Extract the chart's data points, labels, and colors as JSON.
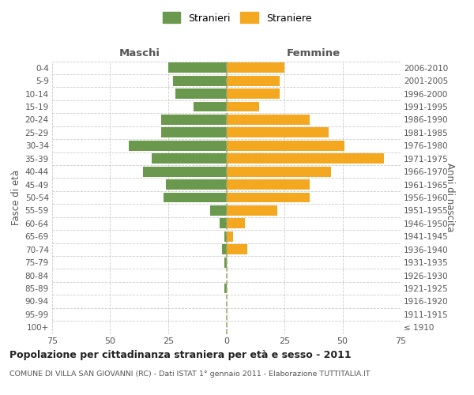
{
  "age_groups": [
    "100+",
    "95-99",
    "90-94",
    "85-89",
    "80-84",
    "75-79",
    "70-74",
    "65-69",
    "60-64",
    "55-59",
    "50-54",
    "45-49",
    "40-44",
    "35-39",
    "30-34",
    "25-29",
    "20-24",
    "15-19",
    "10-14",
    "5-9",
    "0-4"
  ],
  "birth_years": [
    "≤ 1910",
    "1911-1915",
    "1916-1920",
    "1921-1925",
    "1926-1930",
    "1931-1935",
    "1936-1940",
    "1941-1945",
    "1946-1950",
    "1951-1955",
    "1956-1960",
    "1961-1965",
    "1966-1970",
    "1971-1975",
    "1976-1980",
    "1981-1985",
    "1986-1990",
    "1991-1995",
    "1996-2000",
    "2001-2005",
    "2006-2010"
  ],
  "maschi": [
    0,
    0,
    0,
    1,
    0,
    1,
    2,
    1,
    3,
    7,
    27,
    26,
    36,
    32,
    42,
    28,
    28,
    14,
    22,
    23,
    25
  ],
  "femmine": [
    0,
    0,
    0,
    0,
    0,
    0,
    9,
    3,
    8,
    22,
    36,
    36,
    45,
    68,
    51,
    44,
    36,
    14,
    23,
    23,
    25
  ],
  "maschi_color": "#6a994e",
  "femmine_color": "#f4a820",
  "background_color": "#ffffff",
  "grid_color": "#cccccc",
  "title": "Popolazione per cittadinanza straniera per età e sesso - 2011",
  "subtitle": "COMUNE DI VILLA SAN GIOVANNI (RC) - Dati ISTAT 1° gennaio 2011 - Elaborazione TUTTITALIA.IT",
  "xlabel_maschi": "Maschi",
  "xlabel_femmine": "Femmine",
  "ylabel_left": "Fasce di età",
  "ylabel_right": "Anni di nascita",
  "legend_maschi": "Stranieri",
  "legend_femmine": "Straniere",
  "xlim": 75
}
